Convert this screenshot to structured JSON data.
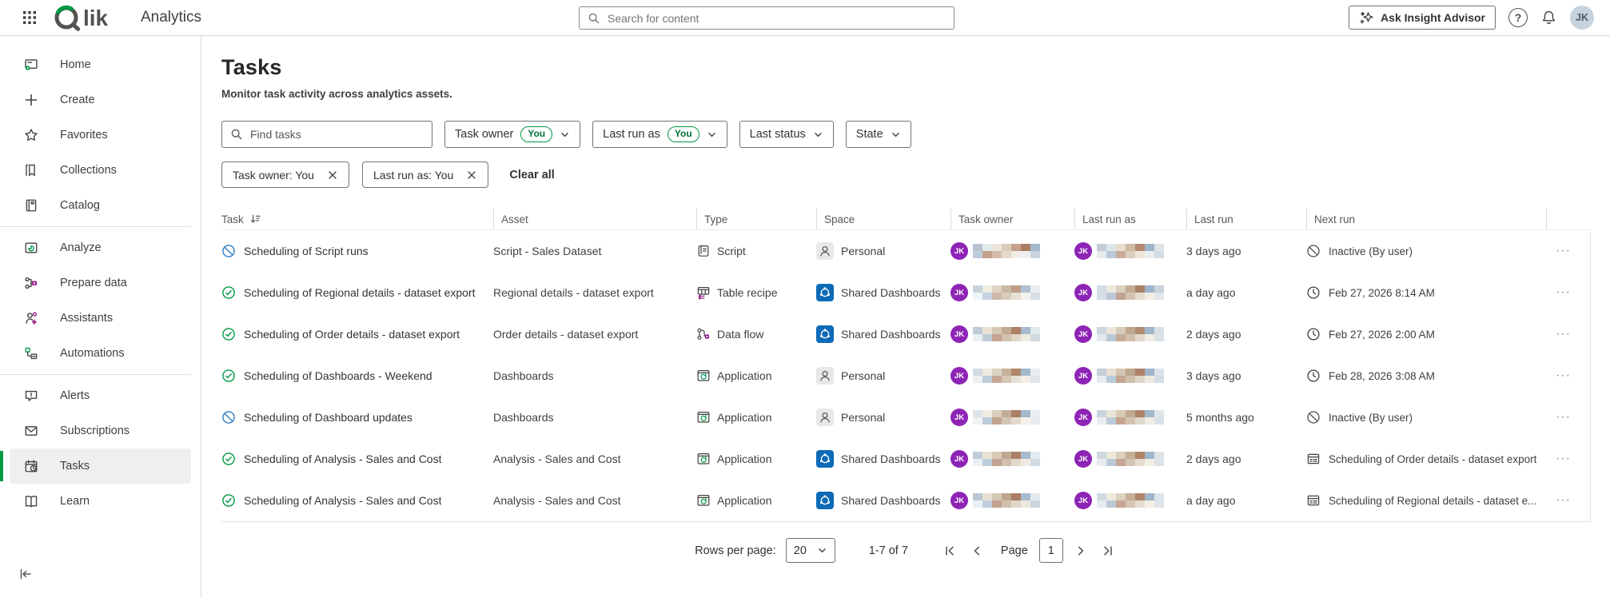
{
  "topbar": {
    "product": "Analytics",
    "search_placeholder": "Search for content",
    "insight_button": "Ask Insight Advisor",
    "avatar_initials": "JK"
  },
  "sidebar": {
    "items": [
      {
        "label": "Home",
        "icon": "home"
      },
      {
        "label": "Create",
        "icon": "create"
      },
      {
        "label": "Favorites",
        "icon": "favorites"
      },
      {
        "label": "Collections",
        "icon": "collections"
      },
      {
        "label": "Catalog",
        "icon": "catalog"
      },
      {
        "divider": true
      },
      {
        "label": "Analyze",
        "icon": "analyze"
      },
      {
        "label": "Prepare data",
        "icon": "prepare-data"
      },
      {
        "label": "Assistants",
        "icon": "assistants"
      },
      {
        "label": "Automations",
        "icon": "automations"
      },
      {
        "divider": true
      },
      {
        "label": "Alerts",
        "icon": "alerts"
      },
      {
        "label": "Subscriptions",
        "icon": "subscriptions"
      },
      {
        "label": "Tasks",
        "icon": "tasks",
        "selected": true
      },
      {
        "label": "Learn",
        "icon": "learn"
      }
    ]
  },
  "page": {
    "title": "Tasks",
    "subtitle": "Monitor task activity across analytics assets."
  },
  "filters": {
    "find_placeholder": "Find tasks",
    "dropdowns": [
      {
        "label": "Task owner",
        "badge": "You"
      },
      {
        "label": "Last run as",
        "badge": "You"
      },
      {
        "label": "Last status"
      },
      {
        "label": "State"
      }
    ],
    "chips": [
      "Task owner: You",
      "Last run as: You"
    ],
    "clear_all": "Clear all"
  },
  "table": {
    "columns": [
      "Task",
      "Asset",
      "Type",
      "Space",
      "Task owner",
      "Last run as",
      "Last run",
      "Next run"
    ],
    "rows": [
      {
        "status": "inactive",
        "task": "Scheduling of Script runs",
        "asset": "Script - Sales Dataset",
        "type": {
          "icon": "script",
          "label": "Script"
        },
        "space": {
          "icon": "personal",
          "label": "Personal"
        },
        "owner_initials": "JK",
        "owner_blur": [
          "#b7c3d1",
          "#e4eaec",
          "#ece5da",
          "#d9cbb8",
          "#c5a18c",
          "#ad7d63",
          "#a3b8cd"
        ],
        "runas_initials": "JK",
        "runas_blur": [
          "#c2cdd8",
          "#dfe7ea",
          "#e7ddcf",
          "#cdbba6",
          "#b48a70",
          "#9fb5ca",
          "#dce4e8"
        ],
        "last_run": "3 days ago",
        "next_run": {
          "icon": "inactive-circle",
          "label": "Inactive (By user)"
        }
      },
      {
        "status": "ok",
        "task": "Scheduling of Regional details - dataset export",
        "asset": "Regional details - dataset export",
        "type": {
          "icon": "table-recipe",
          "label": "Table recipe"
        },
        "space": {
          "icon": "shared",
          "label": "Shared Dashboards"
        },
        "owner_initials": "JK",
        "owner_blur": [
          "#c8d2da",
          "#f0ece2",
          "#ded4c4",
          "#c9b8a2",
          "#bd9d86",
          "#b0c0d2",
          "#e8eef2"
        ],
        "runas_initials": "JK",
        "runas_blur": [
          "#d4dde4",
          "#efe9dd",
          "#dbcfbd",
          "#c2ac94",
          "#ab8168",
          "#9eb4c9",
          "#c7d2dc"
        ],
        "last_run": "a day ago",
        "next_run": {
          "icon": "clock",
          "label": "Feb 27, 2026 8:14 AM"
        }
      },
      {
        "status": "ok",
        "task": "Scheduling of Order details - dataset export",
        "asset": "Order details - dataset export",
        "type": {
          "icon": "data-flow",
          "label": "Data flow"
        },
        "space": {
          "icon": "shared",
          "label": "Shared Dashboards"
        },
        "owner_initials": "JK",
        "owner_blur": [
          "#bfcad6",
          "#e9e2d4",
          "#d6c8b4",
          "#c0aa92",
          "#ae8066",
          "#a6bacd",
          "#e2e9ec"
        ],
        "runas_initials": "JK",
        "runas_blur": [
          "#ccd6de",
          "#ece6d9",
          "#d8ccba",
          "#bfa88f",
          "#b08a71",
          "#a0b6cb",
          "#d8e0e6"
        ],
        "last_run": "2 days ago",
        "next_run": {
          "icon": "clock",
          "label": "Feb 27, 2026 2:00 AM"
        }
      },
      {
        "status": "ok",
        "task": "Scheduling of Dashboards - Weekend",
        "asset": "Dashboards",
        "type": {
          "icon": "application",
          "label": "Application"
        },
        "space": {
          "icon": "personal",
          "label": "Personal"
        },
        "owner_initials": "JK",
        "owner_blur": [
          "#d2dbe2",
          "#eee9df",
          "#dcd2c2",
          "#c6b29b",
          "#b2876d",
          "#a2b8cc",
          "#e6ecef"
        ],
        "runas_initials": "JK",
        "runas_blur": [
          "#c5cfd9",
          "#e8e1d3",
          "#d4c6b2",
          "#bda68d",
          "#ad8168",
          "#9fb5ca",
          "#dbe3e8"
        ],
        "last_run": "3 days ago",
        "next_run": {
          "icon": "clock",
          "label": "Feb 28, 2026 3:08 AM"
        }
      },
      {
        "status": "inactive",
        "task": "Scheduling of Dashboard updates",
        "asset": "Dashboards",
        "type": {
          "icon": "application",
          "label": "Application"
        },
        "space": {
          "icon": "personal",
          "label": "Personal"
        },
        "owner_initials": "JK",
        "owner_blur": [
          "#dde4e9",
          "#f1ece2",
          "#d9cdbb",
          "#c3ad95",
          "#ab7f65",
          "#a4b9cd",
          "#e9eef1"
        ],
        "runas_initials": "JK",
        "runas_blur": [
          "#cad4dc",
          "#ebe5d8",
          "#d6cab7",
          "#c0aa91",
          "#ae8267",
          "#a1b7cb",
          "#dfe6ea"
        ],
        "last_run": "5 months ago",
        "next_run": {
          "icon": "inactive-circle",
          "label": "Inactive (By user)"
        }
      },
      {
        "status": "ok",
        "task": "Scheduling of Analysis - Sales and Cost",
        "asset": "Analysis - Sales and Cost",
        "type": {
          "icon": "application",
          "label": "Application"
        },
        "space": {
          "icon": "shared",
          "label": "Shared Dashboards"
        },
        "owner_initials": "JK",
        "owner_blur": [
          "#c1ccd7",
          "#eae4d6",
          "#d7cab6",
          "#bfa88f",
          "#ac8066",
          "#a5bacd",
          "#e4eaee"
        ],
        "runas_initials": "JK",
        "runas_blur": [
          "#cfd8e0",
          "#ede7da",
          "#dbcfbc",
          "#c4ae96",
          "#b08469",
          "#a0b6ca",
          "#dce4e9"
        ],
        "last_run": "2 days ago",
        "next_run": {
          "icon": "chained-task",
          "label": "Scheduling of Order details - dataset export"
        }
      },
      {
        "status": "ok",
        "task": "Scheduling of Analysis - Sales and Cost",
        "asset": "Analysis - Sales and Cost",
        "type": {
          "icon": "application",
          "label": "Application"
        },
        "space": {
          "icon": "shared",
          "label": "Shared Dashboards"
        },
        "owner_initials": "JK",
        "owner_blur": [
          "#bac6d2",
          "#e7e0d2",
          "#d5c8b4",
          "#bea78e",
          "#aa7e64",
          "#a7bbce",
          "#e3e9ed"
        ],
        "runas_initials": "JK",
        "runas_blur": [
          "#d1dae1",
          "#efe9dc",
          "#ddd1bf",
          "#c5af97",
          "#b1856a",
          "#9fb5c9",
          "#dde5ea"
        ],
        "last_run": "a day ago",
        "next_run": {
          "icon": "chained-task",
          "label": "Scheduling of Regional details - dataset e..."
        }
      }
    ]
  },
  "pagination": {
    "rows_label": "Rows per page:",
    "rows_value": "20",
    "range": "1-7 of 7",
    "page_label": "Page",
    "page_value": "1"
  },
  "colors": {
    "accent_green": "#009845",
    "status_ok_green": "#009845",
    "status_inactive_blue": "#2f7fc4",
    "space_blue": "#0d6ab7",
    "avatar_purple": "#8e24b5",
    "magenta": "#981c87",
    "topbar_avatar_bg": "#c6d3de"
  }
}
